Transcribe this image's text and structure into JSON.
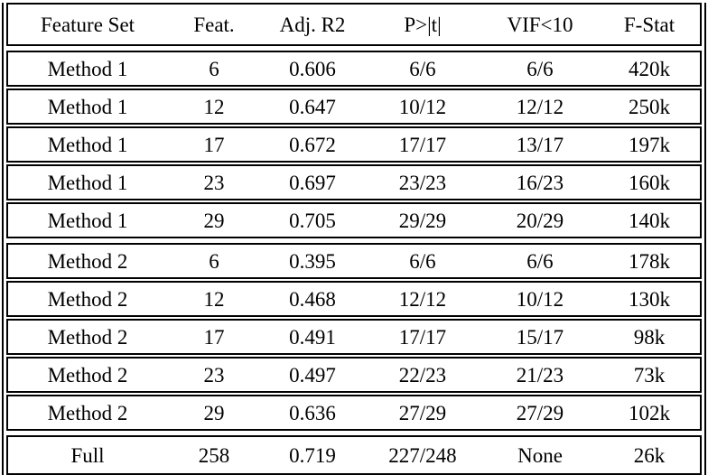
{
  "table": {
    "columns": [
      "Feature Set",
      "Feat.",
      "Adj. R2",
      "P>|t|",
      "VIF<10",
      "F-Stat"
    ],
    "groups": [
      {
        "name": "Method 1 group",
        "rows": [
          [
            "Method 1",
            "6",
            "0.606",
            "6/6",
            "6/6",
            "420k"
          ],
          [
            "Method 1",
            "12",
            "0.647",
            "10/12",
            "12/12",
            "250k"
          ],
          [
            "Method 1",
            "17",
            "0.672",
            "17/17",
            "13/17",
            "197k"
          ],
          [
            "Method 1",
            "23",
            "0.697",
            "23/23",
            "16/23",
            "160k"
          ],
          [
            "Method 1",
            "29",
            "0.705",
            "29/29",
            "20/29",
            "140k"
          ]
        ]
      },
      {
        "name": "Method 2 group",
        "rows": [
          [
            "Method 2",
            "6",
            "0.395",
            "6/6",
            "6/6",
            "178k"
          ],
          [
            "Method 2",
            "12",
            "0.468",
            "12/12",
            "10/12",
            "130k"
          ],
          [
            "Method 2",
            "17",
            "0.491",
            "17/17",
            "15/17",
            "98k"
          ],
          [
            "Method 2",
            "23",
            "0.497",
            "22/23",
            "21/23",
            "73k"
          ],
          [
            "Method 2",
            "29",
            "0.636",
            "27/29",
            "27/29",
            "102k"
          ]
        ]
      },
      {
        "name": "Full model group",
        "rows": [
          [
            "Full",
            "258",
            "0.719",
            "227/248",
            "None",
            "26k"
          ]
        ]
      }
    ]
  },
  "colors": {
    "border": "#000000",
    "background": "#ffffff",
    "text": "#000000"
  },
  "chart_data": {
    "type": "table",
    "columns": [
      "Feature Set",
      "Feat.",
      "Adj. R2",
      "P>|t|",
      "VIF<10",
      "F-Stat"
    ],
    "rows": [
      [
        "Method 1",
        "6",
        "0.606",
        "6/6",
        "6/6",
        "420k"
      ],
      [
        "Method 1",
        "12",
        "0.647",
        "10/12",
        "12/12",
        "250k"
      ],
      [
        "Method 1",
        "17",
        "0.672",
        "17/17",
        "13/17",
        "197k"
      ],
      [
        "Method 1",
        "23",
        "0.697",
        "23/23",
        "16/23",
        "160k"
      ],
      [
        "Method 1",
        "29",
        "0.705",
        "29/29",
        "20/29",
        "140k"
      ],
      [
        "Method 2",
        "6",
        "0.395",
        "6/6",
        "6/6",
        "178k"
      ],
      [
        "Method 2",
        "12",
        "0.468",
        "12/12",
        "10/12",
        "130k"
      ],
      [
        "Method 2",
        "17",
        "0.491",
        "17/17",
        "15/17",
        "98k"
      ],
      [
        "Method 2",
        "23",
        "0.497",
        "22/23",
        "21/23",
        "73k"
      ],
      [
        "Method 2",
        "29",
        "0.636",
        "27/29",
        "27/29",
        "102k"
      ],
      [
        "Full",
        "258",
        "0.719",
        "227/248",
        "None",
        "26k"
      ]
    ]
  }
}
